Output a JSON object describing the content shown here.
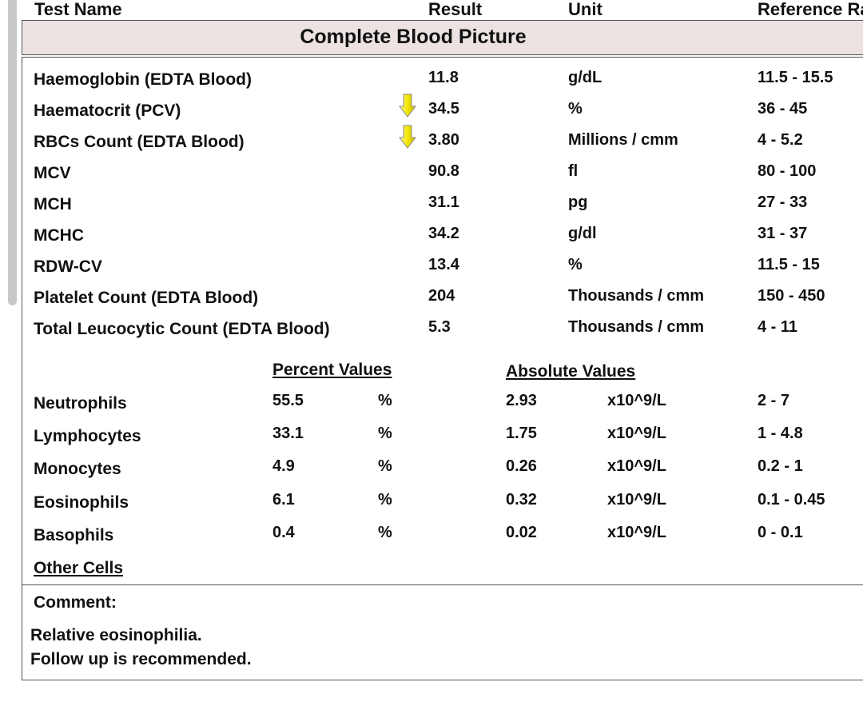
{
  "header": {
    "test_name": "Test Name",
    "result": "Result",
    "unit": "Unit",
    "reference": "Reference Ra"
  },
  "section_title": "Complete Blood Picture",
  "tests": [
    {
      "name": "Haemoglobin (EDTA Blood)",
      "result": "11.8",
      "unit": "g/dL",
      "reference": "11.5 - 15.5",
      "flag": "none"
    },
    {
      "name": "Haematocrit (PCV)",
      "result": "34.5",
      "unit": "%",
      "reference": "36 - 45",
      "flag": "low"
    },
    {
      "name": "RBCs Count (EDTA Blood)",
      "result": "3.80",
      "unit": "Millions / cmm",
      "reference": "4 - 5.2",
      "flag": "low"
    },
    {
      "name": "MCV",
      "result": "90.8",
      "unit": "fl",
      "reference": "80 - 100",
      "flag": "none"
    },
    {
      "name": "MCH",
      "result": "31.1",
      "unit": "pg",
      "reference": "27 - 33",
      "flag": "none"
    },
    {
      "name": "MCHC",
      "result": "34.2",
      "unit": "g/dl",
      "reference": "31 - 37",
      "flag": "none"
    },
    {
      "name": "RDW-CV",
      "result": "13.4",
      "unit": "%",
      "reference": "11.5 - 15",
      "flag": "none"
    },
    {
      "name": "Platelet Count (EDTA Blood)",
      "result": "204",
      "unit": "Thousands / cmm",
      "reference": "150 - 450",
      "flag": "none"
    },
    {
      "name": "Total Leucocytic Count (EDTA Blood)",
      "result": "5.3",
      "unit": "Thousands / cmm",
      "reference": "4 - 11",
      "flag": "none"
    }
  ],
  "differential": {
    "percent_header": "Percent Values",
    "absolute_header": "Absolute Values",
    "rows": [
      {
        "name": "Neutrophils",
        "percent": "55.5",
        "percent_unit": "%",
        "absolute": "2.93",
        "absolute_unit": "x10^9/L",
        "reference": "2 - 7"
      },
      {
        "name": "Lymphocytes",
        "percent": "33.1",
        "percent_unit": "%",
        "absolute": "1.75",
        "absolute_unit": "x10^9/L",
        "reference": "1 - 4.8"
      },
      {
        "name": "Monocytes",
        "percent": "4.9",
        "percent_unit": "%",
        "absolute": "0.26",
        "absolute_unit": "x10^9/L",
        "reference": "0.2 - 1"
      },
      {
        "name": "Eosinophils",
        "percent": "6.1",
        "percent_unit": "%",
        "absolute": "0.32",
        "absolute_unit": "x10^9/L",
        "reference": "0.1 - 0.45"
      },
      {
        "name": "Basophils",
        "percent": "0.4",
        "percent_unit": "%",
        "absolute": "0.02",
        "absolute_unit": "x10^9/L",
        "reference": "0 - 0.1"
      }
    ]
  },
  "other_cells": "Other Cells",
  "comment": {
    "label": "Comment:",
    "line1": "Relative eosinophilia.",
    "line2": "Follow up is recommended."
  },
  "colors": {
    "title_band": "#ece2e2",
    "arrow_fill": "#f2e600",
    "border": "#555555"
  }
}
